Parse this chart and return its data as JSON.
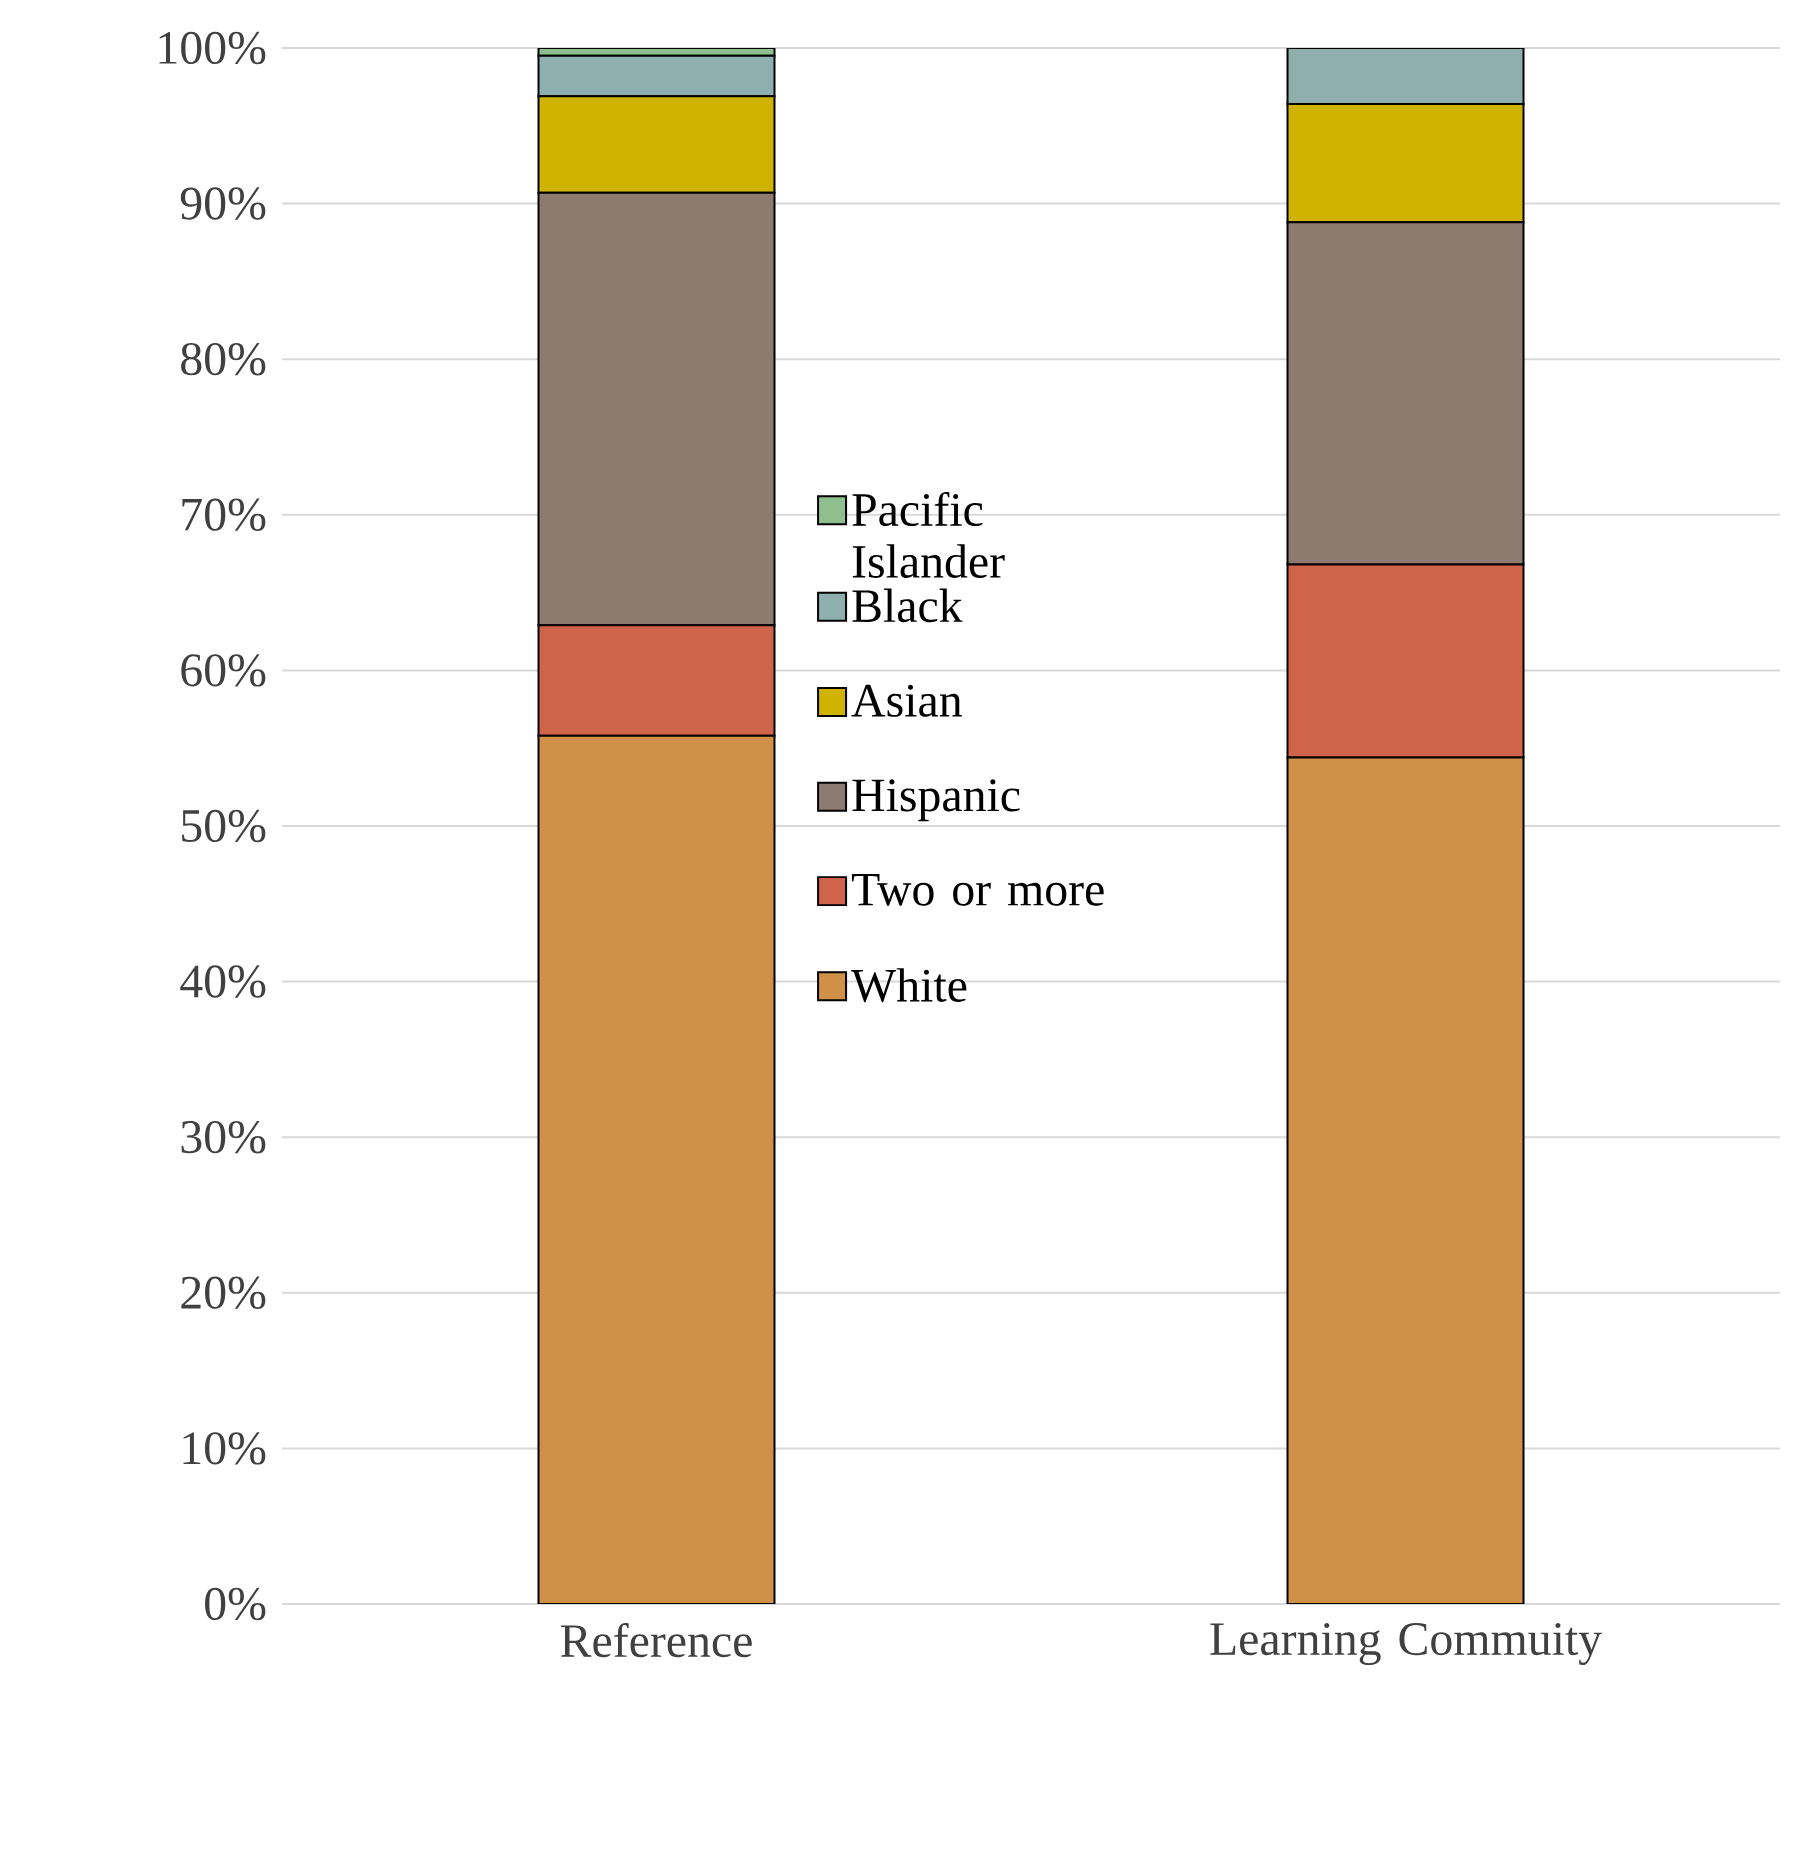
{
  "chart_data": {
    "type": "bar",
    "stacked": true,
    "categories": [
      "Reference",
      "Learning Commuity"
    ],
    "series": [
      {
        "name": "White",
        "color": "#d09048",
        "values": [
          55.8,
          54.4
        ]
      },
      {
        "name": "Two or more",
        "color": "#d0644a",
        "values": [
          7.1,
          12.4
        ]
      },
      {
        "name": "Hispanic",
        "color": "#8c7b6e",
        "values": [
          27.8,
          22.0
        ]
      },
      {
        "name": "Asian",
        "color": "#cfb300",
        "values": [
          6.2,
          7.6
        ]
      },
      {
        "name": "Black",
        "color": "#8fafaf",
        "values": [
          2.6,
          3.6
        ]
      },
      {
        "name": "Pacific Islander",
        "color": "#8fbf8f",
        "values": [
          0.5,
          null
        ]
      }
    ],
    "ylim": [
      0,
      100
    ],
    "yticks": [
      {
        "value": 0,
        "label": "0%"
      },
      {
        "value": 10,
        "label": "10%"
      },
      {
        "value": 20,
        "label": "20%"
      },
      {
        "value": 30,
        "label": "30%"
      },
      {
        "value": 40,
        "label": "40%"
      },
      {
        "value": 50,
        "label": "50%"
      },
      {
        "value": 60,
        "label": "60%"
      },
      {
        "value": 70,
        "label": "70%"
      },
      {
        "value": 80,
        "label": "80%"
      },
      {
        "value": 90,
        "label": "90%"
      },
      {
        "value": 100,
        "label": "100%"
      }
    ],
    "grid": "y",
    "legend": "center"
  }
}
